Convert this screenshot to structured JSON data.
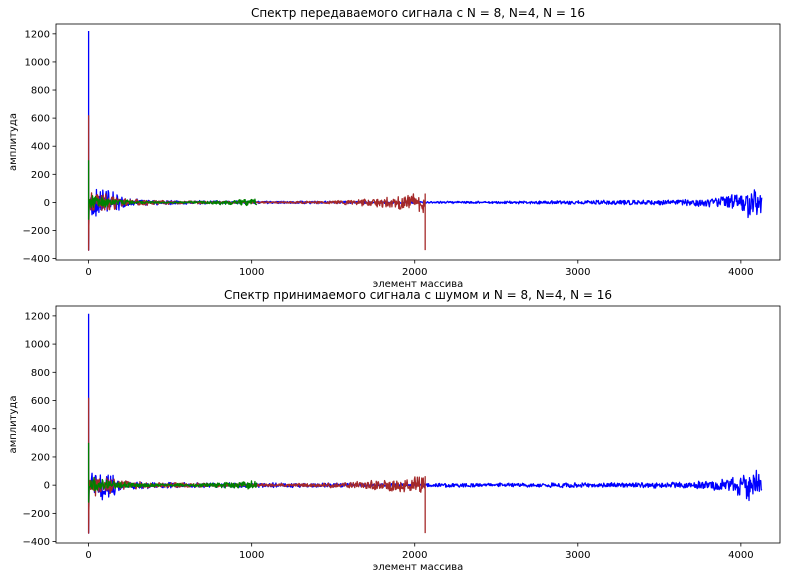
{
  "figure": {
    "background": "#ffffff"
  },
  "chart_data": [
    {
      "type": "line",
      "title": "Спектр передаваемого сигнала с N = 8, N=4, N = 16",
      "xlabel": "элемент массива",
      "ylabel": "амплитуда",
      "xlim": [
        -200,
        4240
      ],
      "ylim": [
        -410,
        1270
      ],
      "xticks": [
        {
          "value": 0,
          "label": "0"
        },
        {
          "value": 1000,
          "label": "1000"
        },
        {
          "value": 2000,
          "label": "2000"
        },
        {
          "value": 3000,
          "label": "3000"
        },
        {
          "value": 4000,
          "label": "4000"
        }
      ],
      "yticks": [
        {
          "value": -400,
          "label": "−400"
        },
        {
          "value": -200,
          "label": "−200"
        },
        {
          "value": 0,
          "label": "0"
        },
        {
          "value": 200,
          "label": "200"
        },
        {
          "value": 400,
          "label": "400"
        },
        {
          "value": 600,
          "label": "600"
        },
        {
          "value": 800,
          "label": "800"
        },
        {
          "value": 1000,
          "label": "1000"
        },
        {
          "value": 1200,
          "label": "1200"
        }
      ],
      "grid": false,
      "series": [
        {
          "color": "#0000ff",
          "x_range": [
            0,
            4128
          ],
          "spike": {
            "x": 0,
            "max": 1220,
            "min": -340
          },
          "envelope": [
            [
              0,
              10
            ],
            [
              20,
              110
            ],
            [
              60,
              120
            ],
            [
              100,
              100
            ],
            [
              150,
              80
            ],
            [
              200,
              50
            ],
            [
              250,
              30
            ],
            [
              300,
              25
            ],
            [
              400,
              22
            ],
            [
              600,
              15
            ],
            [
              1000,
              12
            ],
            [
              2000,
              8
            ],
            [
              2500,
              10
            ],
            [
              3000,
              15
            ],
            [
              3300,
              18
            ],
            [
              3600,
              22
            ],
            [
              3800,
              35
            ],
            [
              3900,
              50
            ],
            [
              3980,
              80
            ],
            [
              4050,
              140
            ],
            [
              4128,
              110
            ]
          ]
        },
        {
          "color": "#a52a2a",
          "x_range": [
            0,
            2064
          ],
          "spike": {
            "x": 0,
            "max": 620,
            "min": -340
          },
          "end_spike": {
            "x": 2064,
            "max": 60,
            "min": -340
          },
          "envelope": [
            [
              0,
              10
            ],
            [
              20,
              90
            ],
            [
              60,
              80
            ],
            [
              100,
              70
            ],
            [
              200,
              40
            ],
            [
              400,
              18
            ],
            [
              800,
              8
            ],
            [
              1100,
              6
            ],
            [
              1400,
              10
            ],
            [
              1600,
              20
            ],
            [
              1800,
              38
            ],
            [
              1950,
              60
            ],
            [
              2060,
              80
            ]
          ]
        },
        {
          "color": "#008000",
          "x_range": [
            0,
            1032
          ],
          "spike": {
            "x": 0,
            "max": 300,
            "min": -120
          },
          "envelope": [
            [
              0,
              10
            ],
            [
              20,
              70
            ],
            [
              60,
              50
            ],
            [
              150,
              30
            ],
            [
              300,
              12
            ],
            [
              500,
              6
            ],
            [
              700,
              10
            ],
            [
              850,
              20
            ],
            [
              950,
              28
            ],
            [
              1032,
              35
            ]
          ]
        }
      ]
    },
    {
      "type": "line",
      "title": "Спектр принимаемого сигнала с шумом и N = 8, N=4, N = 16",
      "xlabel": "элемент массива",
      "ylabel": "амплитуда",
      "xlim": [
        -200,
        4240
      ],
      "ylim": [
        -410,
        1270
      ],
      "xticks": [
        {
          "value": 0,
          "label": "0"
        },
        {
          "value": 1000,
          "label": "1000"
        },
        {
          "value": 2000,
          "label": "2000"
        },
        {
          "value": 3000,
          "label": "3000"
        },
        {
          "value": 4000,
          "label": "4000"
        }
      ],
      "yticks": [
        {
          "value": -400,
          "label": "−400"
        },
        {
          "value": -200,
          "label": "−200"
        },
        {
          "value": 0,
          "label": "0"
        },
        {
          "value": 200,
          "label": "200"
        },
        {
          "value": 400,
          "label": "400"
        },
        {
          "value": 600,
          "label": "600"
        },
        {
          "value": 800,
          "label": "800"
        },
        {
          "value": 1000,
          "label": "1000"
        },
        {
          "value": 1200,
          "label": "1200"
        }
      ],
      "grid": false,
      "series": [
        {
          "color": "#0000ff",
          "x_range": [
            0,
            4128
          ],
          "spike": {
            "x": 0,
            "max": 1215,
            "min": -340
          },
          "envelope": [
            [
              0,
              12
            ],
            [
              20,
              110
            ],
            [
              60,
              120
            ],
            [
              100,
              100
            ],
            [
              150,
              80
            ],
            [
              200,
              50
            ],
            [
              250,
              32
            ],
            [
              300,
              28
            ],
            [
              400,
              25
            ],
            [
              600,
              20
            ],
            [
              1000,
              18
            ],
            [
              2000,
              15
            ],
            [
              2500,
              16
            ],
            [
              3000,
              18
            ],
            [
              3300,
              20
            ],
            [
              3600,
              24
            ],
            [
              3800,
              35
            ],
            [
              3900,
              50
            ],
            [
              3980,
              80
            ],
            [
              4050,
              130
            ],
            [
              4128,
              110
            ]
          ]
        },
        {
          "color": "#a52a2a",
          "x_range": [
            0,
            2064
          ],
          "spike": {
            "x": 0,
            "max": 620,
            "min": -340
          },
          "end_spike": {
            "x": 2064,
            "max": 60,
            "min": -340
          },
          "envelope": [
            [
              0,
              12
            ],
            [
              20,
              90
            ],
            [
              60,
              80
            ],
            [
              100,
              70
            ],
            [
              200,
              42
            ],
            [
              400,
              22
            ],
            [
              800,
              14
            ],
            [
              1100,
              12
            ],
            [
              1400,
              16
            ],
            [
              1600,
              24
            ],
            [
              1800,
              40
            ],
            [
              1950,
              60
            ],
            [
              2060,
              80
            ]
          ]
        },
        {
          "color": "#008000",
          "x_range": [
            0,
            1032
          ],
          "spike": {
            "x": 0,
            "max": 300,
            "min": -120
          },
          "envelope": [
            [
              0,
              12
            ],
            [
              20,
              70
            ],
            [
              60,
              52
            ],
            [
              150,
              32
            ],
            [
              300,
              16
            ],
            [
              500,
              12
            ],
            [
              700,
              14
            ],
            [
              850,
              22
            ],
            [
              950,
              28
            ],
            [
              1032,
              35
            ]
          ]
        }
      ]
    }
  ]
}
